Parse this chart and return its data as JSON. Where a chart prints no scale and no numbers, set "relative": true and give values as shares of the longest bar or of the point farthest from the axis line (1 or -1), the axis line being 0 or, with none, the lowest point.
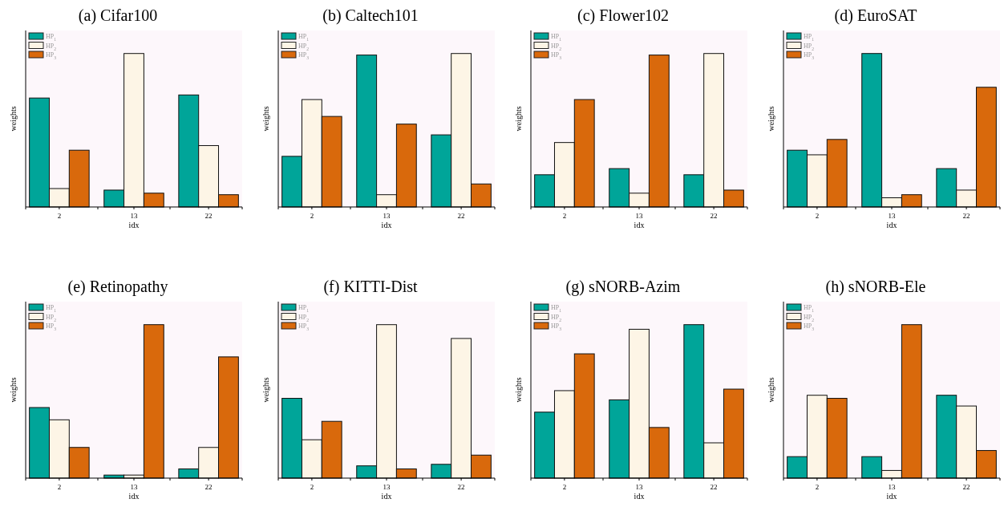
{
  "chart_data": [
    {
      "type": "bar",
      "title": "(a) Cifar100",
      "xlabel": "idx",
      "ylabel": "weights",
      "categories": [
        "2",
        "13",
        "22"
      ],
      "relative": true,
      "tick_labels": "x",
      "legend": "top left",
      "series": [
        {
          "name": "HP$_{1}$",
          "color": "#00a599",
          "values": [
            0.71,
            0.11,
            0.73
          ]
        },
        {
          "name": "HP$_{2}$",
          "color": "#fdf5e6",
          "values": [
            0.12,
            1,
            0.4
          ]
        },
        {
          "name": "HP$_{3}$",
          "color": "#d9690c",
          "values": [
            0.37,
            0.09,
            0.08
          ]
        }
      ]
    },
    {
      "type": "bar",
      "title": "(b) Caltech101",
      "xlabel": "idx",
      "ylabel": "weights",
      "categories": [
        "2",
        "13",
        "22"
      ],
      "relative": true,
      "tick_labels": "x",
      "legend": "top left",
      "series": [
        {
          "name": "HP$_{1}$",
          "color": "#00a599",
          "values": [
            0.33,
            0.99,
            0.47
          ]
        },
        {
          "name": "HP$_{2}$",
          "color": "#fdf5e6",
          "values": [
            0.7,
            0.08,
            1
          ]
        },
        {
          "name": "HP$_{3}$",
          "color": "#d9690c",
          "values": [
            0.59,
            0.54,
            0.15
          ]
        }
      ]
    },
    {
      "type": "bar",
      "title": "(c) Flower102",
      "xlabel": "idx",
      "ylabel": "weights",
      "categories": [
        "2",
        "13",
        "22"
      ],
      "relative": true,
      "tick_labels": "x",
      "legend": "top left",
      "series": [
        {
          "name": "HP$_{1}$",
          "color": "#00a599",
          "values": [
            0.21,
            0.25,
            0.21
          ]
        },
        {
          "name": "HP$_{2}$",
          "color": "#fdf5e6",
          "values": [
            0.42,
            0.09,
            1
          ]
        },
        {
          "name": "HP$_{3}$",
          "color": "#d9690c",
          "values": [
            0.7,
            0.99,
            0.11
          ]
        }
      ]
    },
    {
      "type": "bar",
      "title": "(d) EuroSAT",
      "xlabel": "idx",
      "ylabel": "weights",
      "categories": [
        "2",
        "13",
        "22"
      ],
      "relative": true,
      "tick_labels": "x",
      "legend": "top left",
      "series": [
        {
          "name": "HP$_{1}$",
          "color": "#00a599",
          "values": [
            0.37,
            1,
            0.25
          ]
        },
        {
          "name": "HP$_{2}$",
          "color": "#fdf5e6",
          "values": [
            0.34,
            0.06,
            0.11
          ]
        },
        {
          "name": "HP$_{3}$",
          "color": "#d9690c",
          "values": [
            0.44,
            0.08,
            0.78
          ]
        }
      ]
    },
    {
      "type": "bar",
      "title": "(e) Retinopathy",
      "xlabel": "idx",
      "ylabel": "weights",
      "categories": [
        "2",
        "13",
        "22"
      ],
      "relative": true,
      "tick_labels": "x",
      "legend": "top left",
      "series": [
        {
          "name": "HP$_{1}$",
          "color": "#00a599",
          "values": [
            0.46,
            0.02,
            0.06
          ]
        },
        {
          "name": "HP$_{2}$",
          "color": "#fdf5e6",
          "values": [
            0.38,
            0.02,
            0.2
          ]
        },
        {
          "name": "HP$_{3}$",
          "color": "#d9690c",
          "values": [
            0.2,
            1,
            0.79
          ]
        }
      ]
    },
    {
      "type": "bar",
      "title": "(f) KITTI-Dist",
      "xlabel": "idx",
      "ylabel": "weights",
      "categories": [
        "2",
        "13",
        "22"
      ],
      "relative": true,
      "tick_labels": "x",
      "legend": "top left",
      "series": [
        {
          "name": "HP$_{1}$",
          "color": "#00a599",
          "values": [
            0.52,
            0.08,
            0.09
          ]
        },
        {
          "name": "HP$_{2}$",
          "color": "#fdf5e6",
          "values": [
            0.25,
            1,
            0.91
          ]
        },
        {
          "name": "HP$_{3}$",
          "color": "#d9690c",
          "values": [
            0.37,
            0.06,
            0.15
          ]
        }
      ]
    },
    {
      "type": "bar",
      "title": "(g) sNORB-Azim",
      "xlabel": "idx",
      "ylabel": "weights",
      "categories": [
        "2",
        "13",
        "22"
      ],
      "relative": true,
      "tick_labels": "x",
      "legend": "top left",
      "series": [
        {
          "name": "HP$_{1}$",
          "color": "#00a599",
          "values": [
            0.43,
            0.51,
            1
          ]
        },
        {
          "name": "HP$_{2}$",
          "color": "#fdf5e6",
          "values": [
            0.57,
            0.97,
            0.23
          ]
        },
        {
          "name": "HP$_{3}$",
          "color": "#d9690c",
          "values": [
            0.81,
            0.33,
            0.58
          ]
        }
      ]
    },
    {
      "type": "bar",
      "title": "(h) sNORB-Ele",
      "xlabel": "idx",
      "ylabel": "weights",
      "categories": [
        "2",
        "13",
        "22"
      ],
      "relative": true,
      "tick_labels": "x",
      "legend": "top left",
      "series": [
        {
          "name": "HP$_{1}$",
          "color": "#00a599",
          "values": [
            0.14,
            0.14,
            0.54
          ]
        },
        {
          "name": "HP$_{2}$",
          "color": "#fdf5e6",
          "values": [
            0.54,
            0.05,
            0.47
          ]
        },
        {
          "name": "HP$_{3}$",
          "color": "#d9690c",
          "values": [
            0.52,
            1,
            0.18
          ]
        }
      ]
    }
  ]
}
